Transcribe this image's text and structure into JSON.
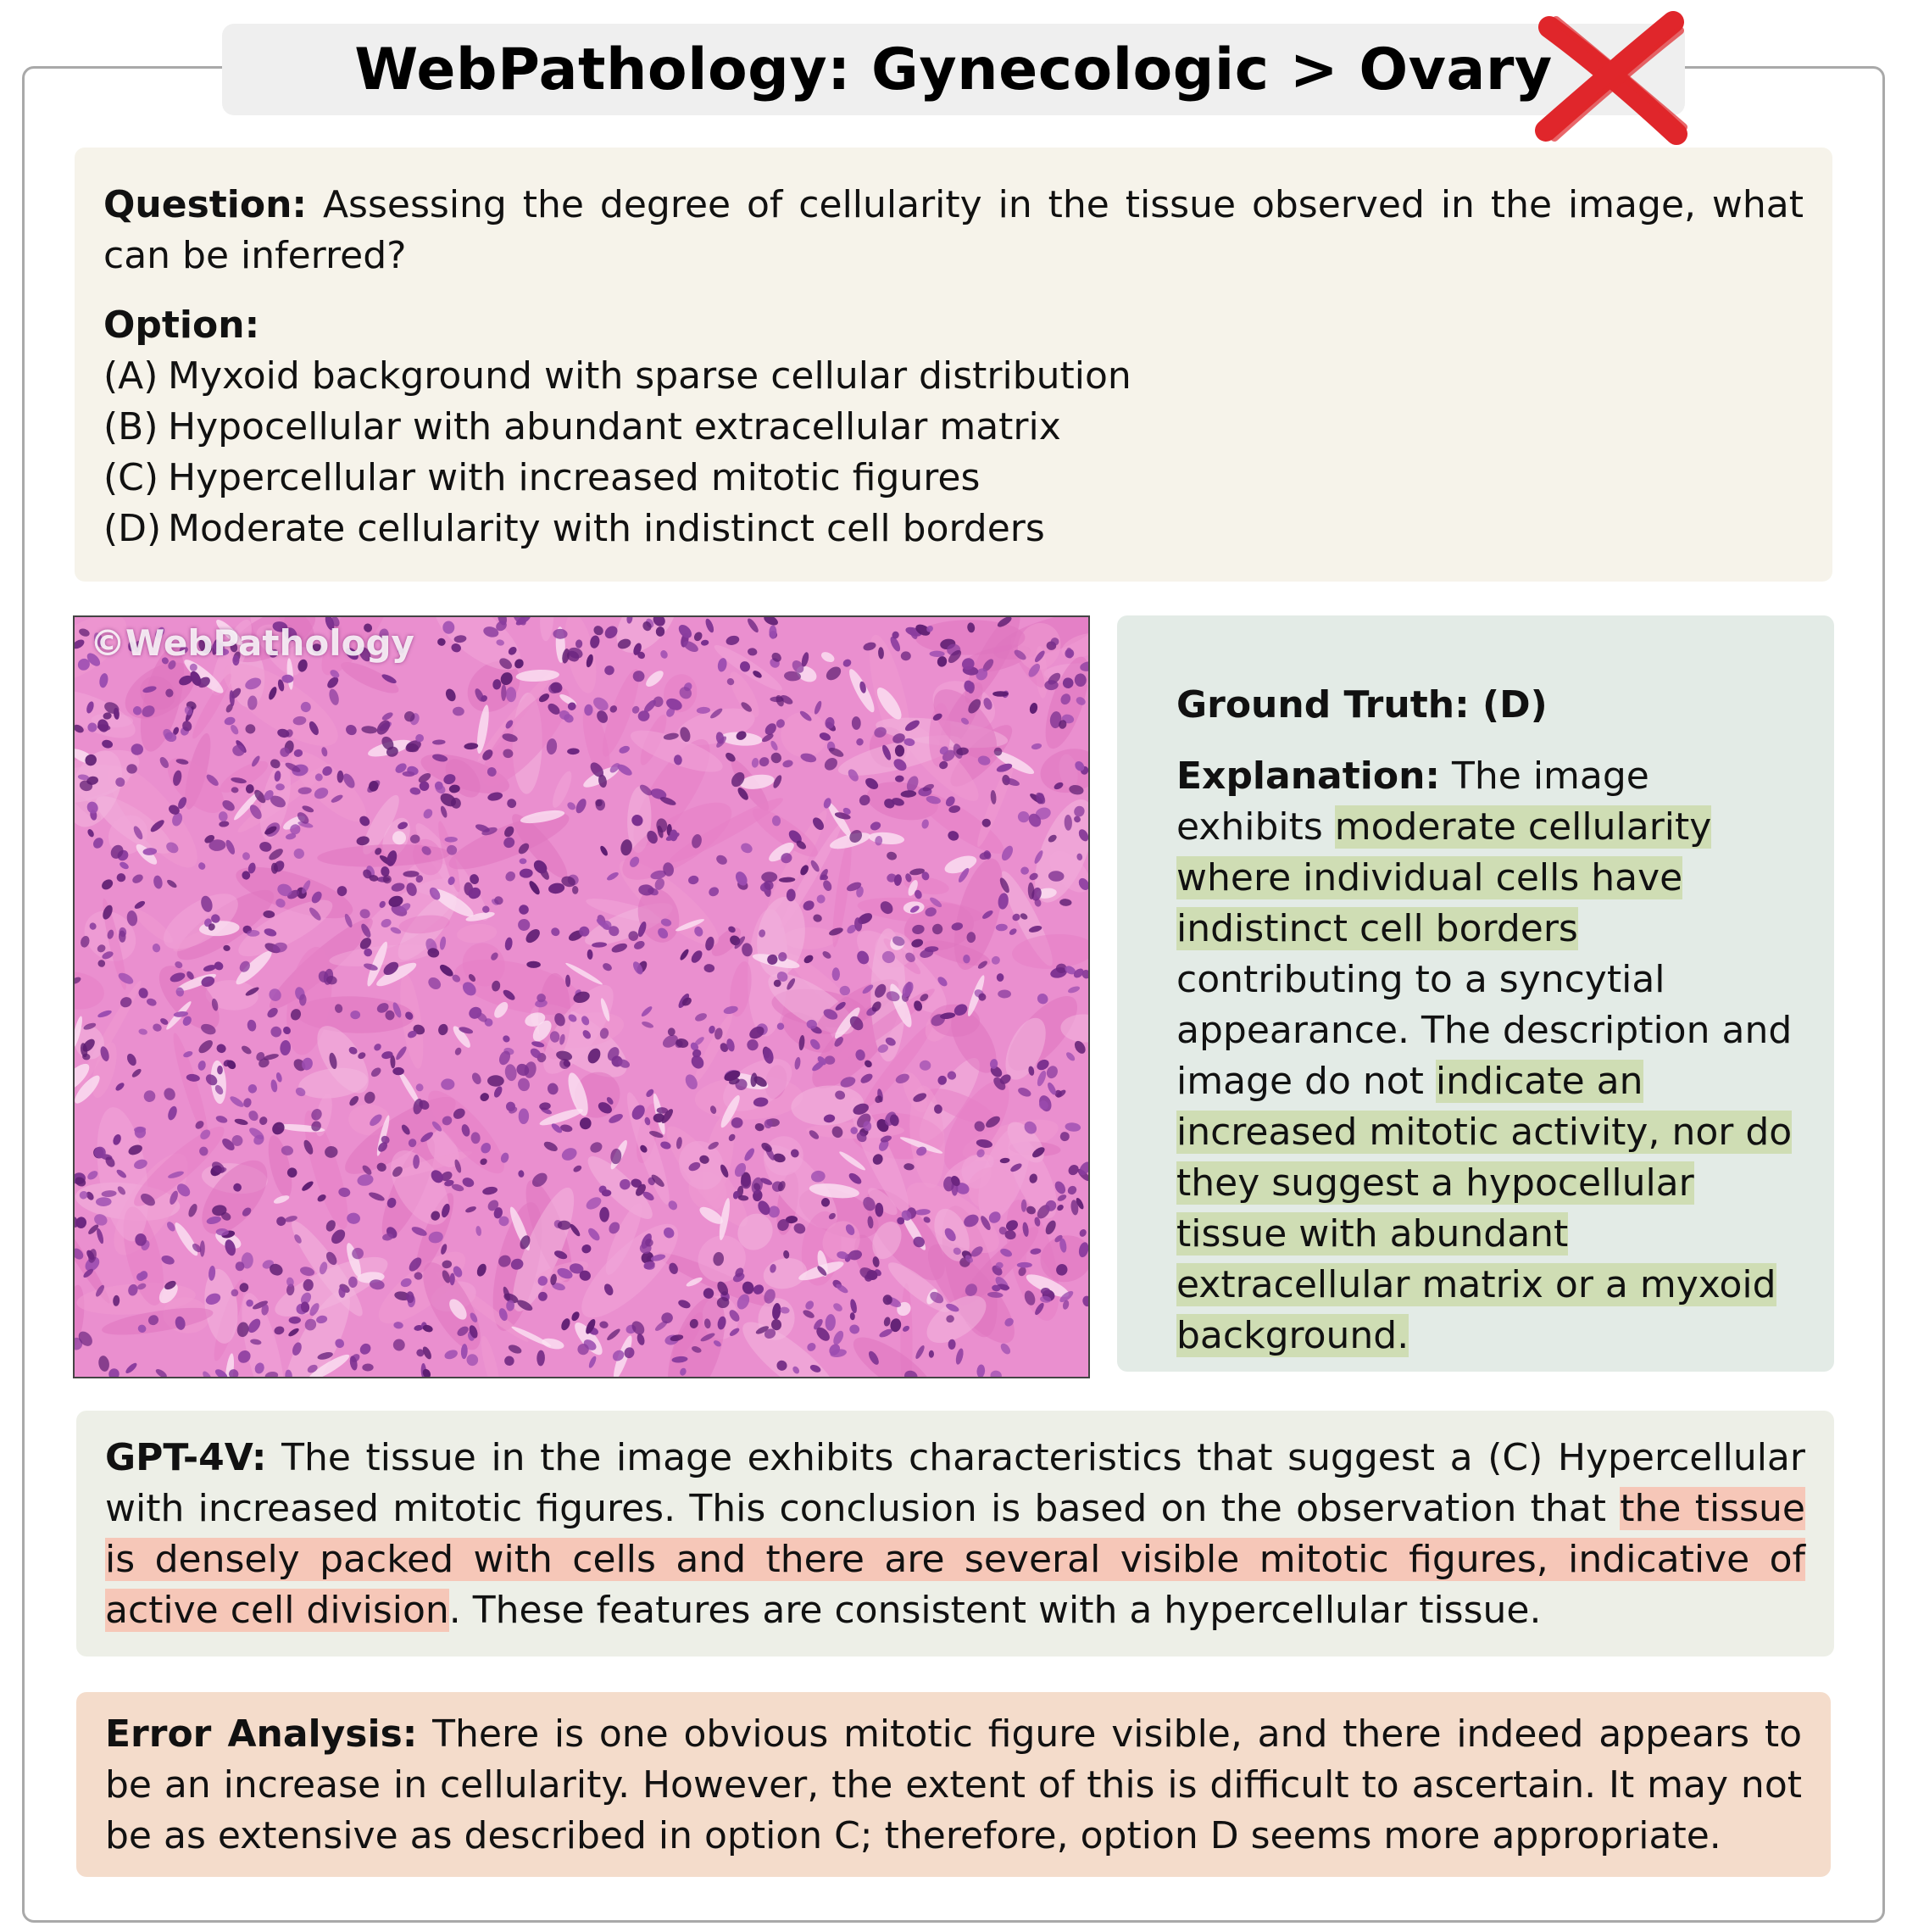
{
  "title": "WebPathology: Gynecologic > Ovary",
  "result_icon": "red-x-icon",
  "question": {
    "label": "Question:",
    "text": "Assessing the degree of cellularity in the tissue observed in the image, what can be inferred?",
    "option_label": "Option:",
    "options": [
      {
        "key": "(A)",
        "text": "Myxoid background with sparse cellular distribution"
      },
      {
        "key": "(B)",
        "text": "Hypocellular with abundant extracellular matrix"
      },
      {
        "key": "(C)",
        "text": "Hypercellular with increased mitotic figures"
      },
      {
        "key": "(D)",
        "text": "Moderate cellularity with indistinct cell borders"
      }
    ]
  },
  "image": {
    "watermark": "©WebPathology"
  },
  "ground_truth": {
    "label": "Ground Truth: (D)",
    "explanation_label": "Explanation:",
    "explanation_parts": [
      "The image exhibits ",
      "moderate cellularity where individual cells have indistinct cell borders",
      " contributing to a syncytial appearance. The description and image do not ",
      "indicate an increased mitotic activity, nor do they suggest a hypocellular tissue with abundant extracellular matrix or a myxoid background."
    ]
  },
  "gpt4v": {
    "label": "GPT-4V:",
    "parts": [
      "The tissue in the image exhibits characteristics that suggest a (C) Hypercellular with increased mitotic figures. This conclusion is based on the observation that ",
      "the tissue is densely packed with cells and there are several visible mitotic figures, indicative of active cell division",
      ". These features are consistent with a hypercellular tissue."
    ]
  },
  "error_analysis": {
    "label": "Error Analysis:",
    "text": "There is one obvious mitotic figure visible, and there indeed appears to be an increase in cellularity. However, the extent of this is difficult to ascertain. It may not be as extensive as described in option C; therefore, option D seems more appropriate."
  }
}
